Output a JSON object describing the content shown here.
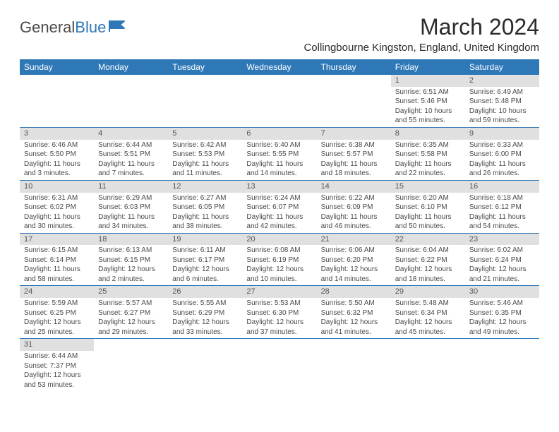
{
  "brand": {
    "part1": "General",
    "part2": "Blue"
  },
  "title": "March 2024",
  "location": "Collingbourne Kingston, England, United Kingdom",
  "colors": {
    "header_bg": "#2f78b8",
    "header_text": "#ffffff",
    "daynum_bg": "#e0e0e0",
    "row_border": "#2f78b8",
    "body_text": "#4a4a4a"
  },
  "typography": {
    "title_fontsize": 32,
    "location_fontsize": 15,
    "header_fontsize": 12,
    "cell_fontsize": 10
  },
  "day_labels": [
    "Sunday",
    "Monday",
    "Tuesday",
    "Wednesday",
    "Thursday",
    "Friday",
    "Saturday"
  ],
  "weeks": [
    [
      {
        "n": "",
        "sr": "",
        "ss": "",
        "dl": ""
      },
      {
        "n": "",
        "sr": "",
        "ss": "",
        "dl": ""
      },
      {
        "n": "",
        "sr": "",
        "ss": "",
        "dl": ""
      },
      {
        "n": "",
        "sr": "",
        "ss": "",
        "dl": ""
      },
      {
        "n": "",
        "sr": "",
        "ss": "",
        "dl": ""
      },
      {
        "n": "1",
        "sr": "Sunrise: 6:51 AM",
        "ss": "Sunset: 5:46 PM",
        "dl": "Daylight: 10 hours and 55 minutes."
      },
      {
        "n": "2",
        "sr": "Sunrise: 6:49 AM",
        "ss": "Sunset: 5:48 PM",
        "dl": "Daylight: 10 hours and 59 minutes."
      }
    ],
    [
      {
        "n": "3",
        "sr": "Sunrise: 6:46 AM",
        "ss": "Sunset: 5:50 PM",
        "dl": "Daylight: 11 hours and 3 minutes."
      },
      {
        "n": "4",
        "sr": "Sunrise: 6:44 AM",
        "ss": "Sunset: 5:51 PM",
        "dl": "Daylight: 11 hours and 7 minutes."
      },
      {
        "n": "5",
        "sr": "Sunrise: 6:42 AM",
        "ss": "Sunset: 5:53 PM",
        "dl": "Daylight: 11 hours and 11 minutes."
      },
      {
        "n": "6",
        "sr": "Sunrise: 6:40 AM",
        "ss": "Sunset: 5:55 PM",
        "dl": "Daylight: 11 hours and 14 minutes."
      },
      {
        "n": "7",
        "sr": "Sunrise: 6:38 AM",
        "ss": "Sunset: 5:57 PM",
        "dl": "Daylight: 11 hours and 18 minutes."
      },
      {
        "n": "8",
        "sr": "Sunrise: 6:35 AM",
        "ss": "Sunset: 5:58 PM",
        "dl": "Daylight: 11 hours and 22 minutes."
      },
      {
        "n": "9",
        "sr": "Sunrise: 6:33 AM",
        "ss": "Sunset: 6:00 PM",
        "dl": "Daylight: 11 hours and 26 minutes."
      }
    ],
    [
      {
        "n": "10",
        "sr": "Sunrise: 6:31 AM",
        "ss": "Sunset: 6:02 PM",
        "dl": "Daylight: 11 hours and 30 minutes."
      },
      {
        "n": "11",
        "sr": "Sunrise: 6:29 AM",
        "ss": "Sunset: 6:03 PM",
        "dl": "Daylight: 11 hours and 34 minutes."
      },
      {
        "n": "12",
        "sr": "Sunrise: 6:27 AM",
        "ss": "Sunset: 6:05 PM",
        "dl": "Daylight: 11 hours and 38 minutes."
      },
      {
        "n": "13",
        "sr": "Sunrise: 6:24 AM",
        "ss": "Sunset: 6:07 PM",
        "dl": "Daylight: 11 hours and 42 minutes."
      },
      {
        "n": "14",
        "sr": "Sunrise: 6:22 AM",
        "ss": "Sunset: 6:09 PM",
        "dl": "Daylight: 11 hours and 46 minutes."
      },
      {
        "n": "15",
        "sr": "Sunrise: 6:20 AM",
        "ss": "Sunset: 6:10 PM",
        "dl": "Daylight: 11 hours and 50 minutes."
      },
      {
        "n": "16",
        "sr": "Sunrise: 6:18 AM",
        "ss": "Sunset: 6:12 PM",
        "dl": "Daylight: 11 hours and 54 minutes."
      }
    ],
    [
      {
        "n": "17",
        "sr": "Sunrise: 6:15 AM",
        "ss": "Sunset: 6:14 PM",
        "dl": "Daylight: 11 hours and 58 minutes."
      },
      {
        "n": "18",
        "sr": "Sunrise: 6:13 AM",
        "ss": "Sunset: 6:15 PM",
        "dl": "Daylight: 12 hours and 2 minutes."
      },
      {
        "n": "19",
        "sr": "Sunrise: 6:11 AM",
        "ss": "Sunset: 6:17 PM",
        "dl": "Daylight: 12 hours and 6 minutes."
      },
      {
        "n": "20",
        "sr": "Sunrise: 6:08 AM",
        "ss": "Sunset: 6:19 PM",
        "dl": "Daylight: 12 hours and 10 minutes."
      },
      {
        "n": "21",
        "sr": "Sunrise: 6:06 AM",
        "ss": "Sunset: 6:20 PM",
        "dl": "Daylight: 12 hours and 14 minutes."
      },
      {
        "n": "22",
        "sr": "Sunrise: 6:04 AM",
        "ss": "Sunset: 6:22 PM",
        "dl": "Daylight: 12 hours and 18 minutes."
      },
      {
        "n": "23",
        "sr": "Sunrise: 6:02 AM",
        "ss": "Sunset: 6:24 PM",
        "dl": "Daylight: 12 hours and 21 minutes."
      }
    ],
    [
      {
        "n": "24",
        "sr": "Sunrise: 5:59 AM",
        "ss": "Sunset: 6:25 PM",
        "dl": "Daylight: 12 hours and 25 minutes."
      },
      {
        "n": "25",
        "sr": "Sunrise: 5:57 AM",
        "ss": "Sunset: 6:27 PM",
        "dl": "Daylight: 12 hours and 29 minutes."
      },
      {
        "n": "26",
        "sr": "Sunrise: 5:55 AM",
        "ss": "Sunset: 6:29 PM",
        "dl": "Daylight: 12 hours and 33 minutes."
      },
      {
        "n": "27",
        "sr": "Sunrise: 5:53 AM",
        "ss": "Sunset: 6:30 PM",
        "dl": "Daylight: 12 hours and 37 minutes."
      },
      {
        "n": "28",
        "sr": "Sunrise: 5:50 AM",
        "ss": "Sunset: 6:32 PM",
        "dl": "Daylight: 12 hours and 41 minutes."
      },
      {
        "n": "29",
        "sr": "Sunrise: 5:48 AM",
        "ss": "Sunset: 6:34 PM",
        "dl": "Daylight: 12 hours and 45 minutes."
      },
      {
        "n": "30",
        "sr": "Sunrise: 5:46 AM",
        "ss": "Sunset: 6:35 PM",
        "dl": "Daylight: 12 hours and 49 minutes."
      }
    ],
    [
      {
        "n": "31",
        "sr": "Sunrise: 6:44 AM",
        "ss": "Sunset: 7:37 PM",
        "dl": "Daylight: 12 hours and 53 minutes."
      },
      {
        "n": "",
        "sr": "",
        "ss": "",
        "dl": ""
      },
      {
        "n": "",
        "sr": "",
        "ss": "",
        "dl": ""
      },
      {
        "n": "",
        "sr": "",
        "ss": "",
        "dl": ""
      },
      {
        "n": "",
        "sr": "",
        "ss": "",
        "dl": ""
      },
      {
        "n": "",
        "sr": "",
        "ss": "",
        "dl": ""
      },
      {
        "n": "",
        "sr": "",
        "ss": "",
        "dl": ""
      }
    ]
  ]
}
